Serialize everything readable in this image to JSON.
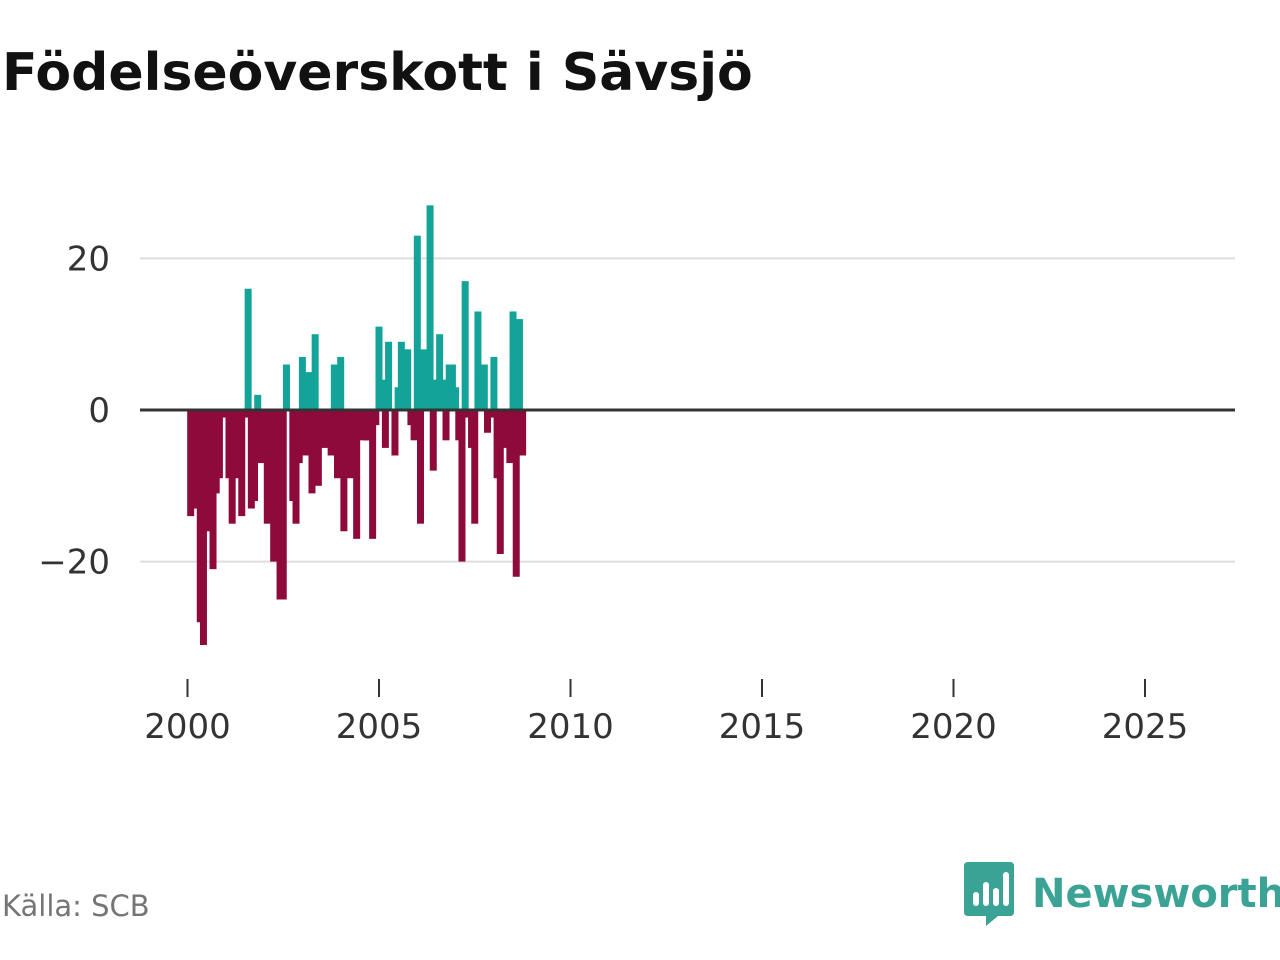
{
  "title": "Födelseöverskott i Sävsjö",
  "source": "Källa: SCB",
  "logo": {
    "text": "Newsworthy",
    "icon": "newsworthy-logo-icon",
    "color": "#3aa396"
  },
  "colors": {
    "positive": "#13a399",
    "negative": "#8e0a3b",
    "gridline": "#dddddd",
    "zero_line": "#333333"
  },
  "chart_data": {
    "type": "bar",
    "title": "Födelseöverskott i Sävsjö",
    "xlabel": "",
    "ylabel": "",
    "frequency": "monthly",
    "start": "2000-01",
    "ylim": [
      -34,
      29
    ],
    "xlim": [
      1998.6,
      2027.4
    ],
    "y_ticks": [
      -20,
      0,
      20
    ],
    "y_tick_labels": [
      "−20",
      "0",
      "20"
    ],
    "x_ticks": [
      2000,
      2005,
      2010,
      2015,
      2020,
      2025
    ],
    "x_tick_labels": [
      "2000",
      "2005",
      "2010",
      "2015",
      "2020",
      "2025"
    ],
    "grid": true,
    "values": [
      0,
      -14,
      -11,
      -13,
      -28,
      -31,
      -16,
      -1,
      -21,
      -11,
      -9,
      -1,
      0,
      -9,
      -15,
      -8,
      -9,
      -14,
      -1,
      16,
      -13,
      -12,
      2,
      -7,
      -2,
      -15,
      -6,
      -20,
      -9,
      -25,
      -25,
      6,
      0,
      -12,
      -15,
      -7,
      7,
      -6,
      5,
      -11,
      10,
      -10,
      -5,
      -3,
      -5,
      -6,
      6,
      -9,
      7,
      -16,
      -4,
      -9,
      -7,
      -17,
      -2,
      -4,
      -4,
      -4,
      -17,
      -2,
      11,
      4,
      -5,
      9,
      0,
      -6,
      3,
      9,
      8,
      8,
      -2,
      -4,
      23,
      -15,
      8,
      6,
      27,
      -8,
      4,
      10,
      4,
      -4,
      6,
      6,
      3,
      -4,
      -20,
      17,
      -1,
      -5,
      -15,
      13,
      4,
      6,
      -3,
      -1,
      7,
      -9,
      -19,
      -5,
      -2,
      -7,
      13,
      -22,
      12,
      -6
    ]
  }
}
